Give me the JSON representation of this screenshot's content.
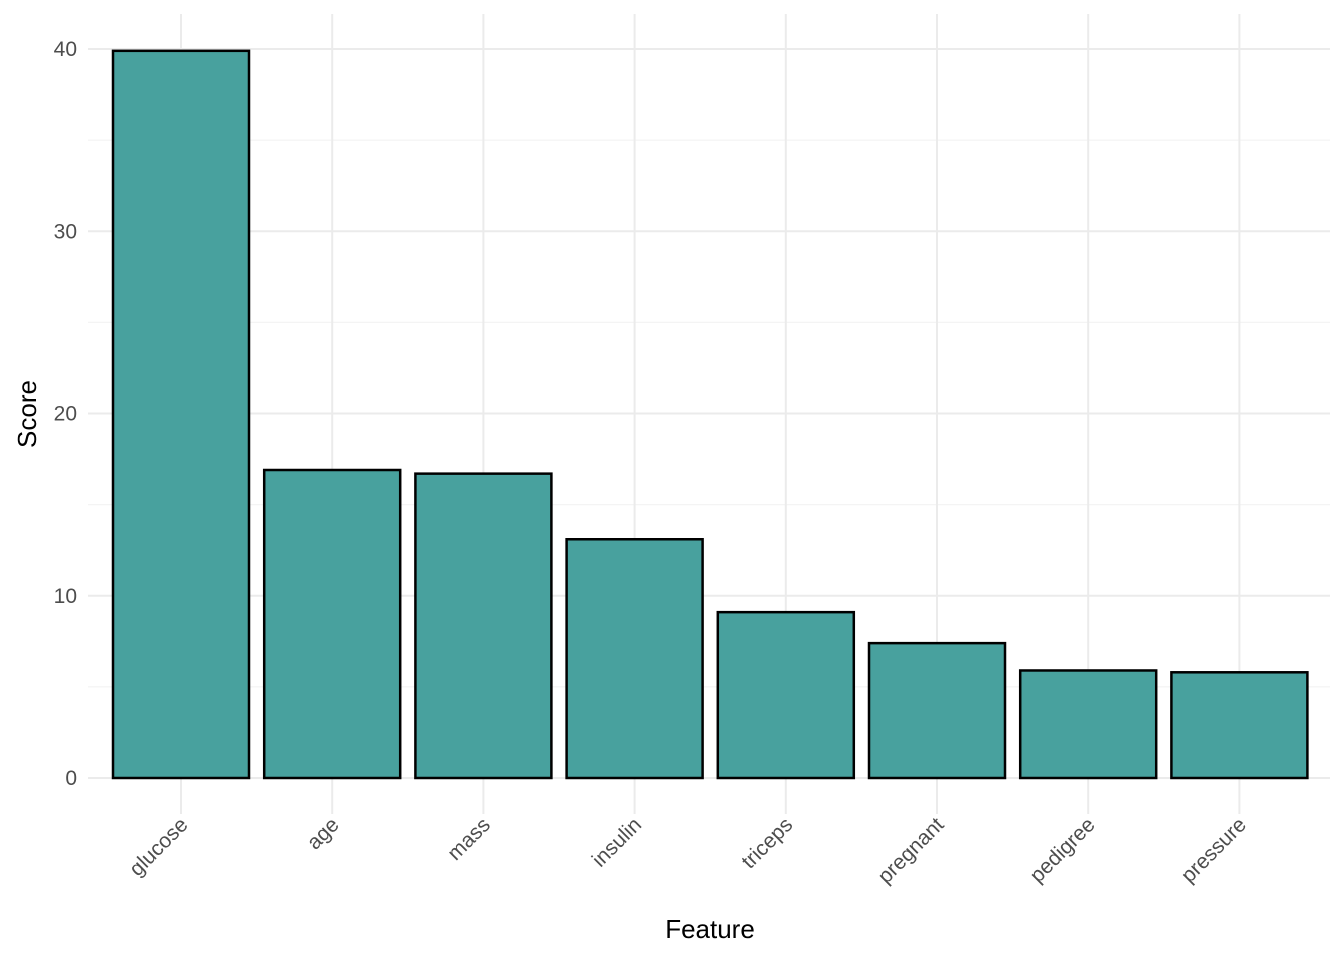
{
  "chart_data": {
    "type": "bar",
    "categories": [
      "glucose",
      "age",
      "mass",
      "insulin",
      "triceps",
      "pregnant",
      "pedigree",
      "pressure"
    ],
    "values": [
      39.9,
      16.9,
      16.7,
      13.1,
      9.1,
      7.4,
      5.9,
      5.8
    ],
    "title": "",
    "xlabel": "Feature",
    "ylabel": "Score",
    "ylim": [
      0,
      40
    ],
    "yticks": [
      0,
      10,
      20,
      30,
      40
    ],
    "grid": true,
    "legend": "none",
    "colors": {
      "bar_fill": "#48a19e",
      "bar_stroke": "#000000",
      "grid_major": "#ebebeb",
      "grid_minor": "#f4f4f4"
    }
  }
}
